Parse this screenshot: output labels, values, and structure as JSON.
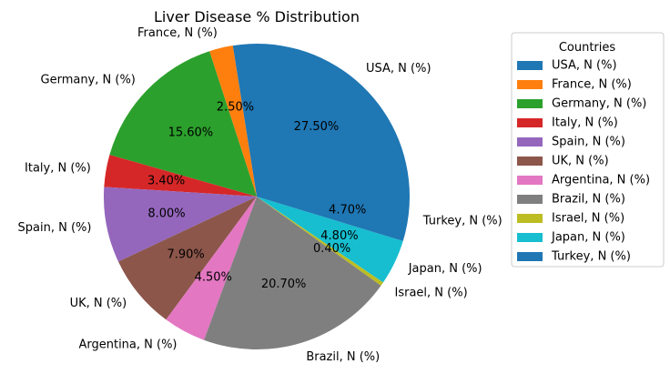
{
  "chart_data": {
    "type": "pie",
    "title": "Liver Disease % Distribution",
    "categories": [
      "USA, N (%)",
      "France, N (%)",
      "Germany, N (%)",
      "Italy, N (%)",
      "Spain, N (%)",
      "UK, N (%)",
      "Argentina, N (%)",
      "Brazil, N (%)",
      "Israel, N (%)",
      "Japan, N (%)",
      "Turkey, N (%)"
    ],
    "values": [
      27.5,
      2.5,
      15.6,
      3.4,
      8.0,
      7.9,
      4.5,
      20.7,
      0.4,
      4.8,
      4.7
    ],
    "value_labels": [
      "27.50%",
      "2.50%",
      "15.60%",
      "3.40%",
      "8.00%",
      "7.90%",
      "4.50%",
      "20.70%",
      "0.40%",
      "4.80%",
      "4.70%"
    ],
    "colors": [
      "#1f77b4",
      "#ff7f0e",
      "#2ca02c",
      "#d62728",
      "#9467bd",
      "#8c564b",
      "#e377c2",
      "#7f7f7f",
      "#bcbd22",
      "#17becf",
      "#1f77b4"
    ],
    "legend": {
      "title": "Countries",
      "placement": "right"
    }
  }
}
